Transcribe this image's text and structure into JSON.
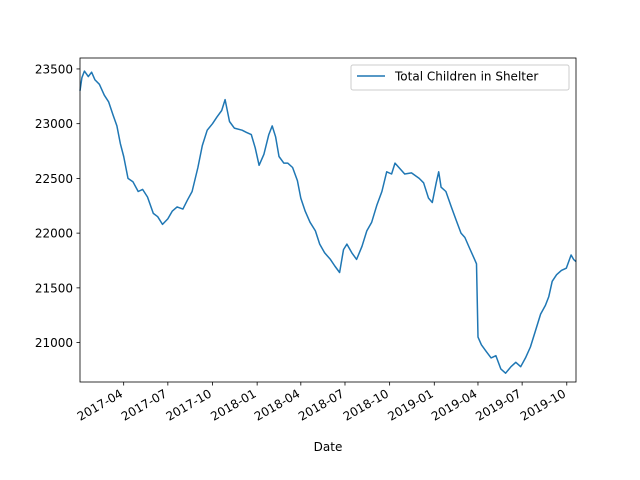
{
  "chart_data": {
    "type": "line",
    "xlabel": "Date",
    "ylabel": "",
    "title": "",
    "x_axis_type": "date",
    "xlim": [
      "2017-01-01",
      "2019-10-20"
    ],
    "ylim": [
      20640,
      23600
    ],
    "grid": false,
    "legend": {
      "placement": "top-right"
    },
    "x_ticks": [
      {
        "date": "2017-04-01",
        "label": "2017-04"
      },
      {
        "date": "2017-07-01",
        "label": "2017-07"
      },
      {
        "date": "2017-10-01",
        "label": "2017-10"
      },
      {
        "date": "2018-01-01",
        "label": "2018-01"
      },
      {
        "date": "2018-04-01",
        "label": "2018-04"
      },
      {
        "date": "2018-07-01",
        "label": "2018-07"
      },
      {
        "date": "2018-10-01",
        "label": "2018-10"
      },
      {
        "date": "2019-01-01",
        "label": "2019-01"
      },
      {
        "date": "2019-04-01",
        "label": "2019-04"
      },
      {
        "date": "2019-07-01",
        "label": "2019-07"
      },
      {
        "date": "2019-10-01",
        "label": "2019-10"
      }
    ],
    "y_ticks": [
      21000,
      21500,
      22000,
      22500,
      23000,
      23500
    ],
    "series": [
      {
        "name": "Total Children in Shelter",
        "color": "#1f77b4",
        "points": [
          [
            "2017-01-01",
            23300
          ],
          [
            "2017-01-05",
            23420
          ],
          [
            "2017-01-10",
            23480
          ],
          [
            "2017-01-18",
            23430
          ],
          [
            "2017-01-25",
            23470
          ],
          [
            "2017-02-01",
            23400
          ],
          [
            "2017-02-10",
            23360
          ],
          [
            "2017-02-20",
            23260
          ],
          [
            "2017-03-01",
            23200
          ],
          [
            "2017-03-10",
            23080
          ],
          [
            "2017-03-18",
            22980
          ],
          [
            "2017-03-25",
            22820
          ],
          [
            "2017-04-01",
            22700
          ],
          [
            "2017-04-10",
            22500
          ],
          [
            "2017-04-20",
            22470
          ],
          [
            "2017-05-01",
            22380
          ],
          [
            "2017-05-10",
            22400
          ],
          [
            "2017-05-20",
            22330
          ],
          [
            "2017-06-01",
            22180
          ],
          [
            "2017-06-10",
            22150
          ],
          [
            "2017-06-20",
            22080
          ],
          [
            "2017-07-01",
            22130
          ],
          [
            "2017-07-10",
            22200
          ],
          [
            "2017-07-20",
            22240
          ],
          [
            "2017-08-01",
            22220
          ],
          [
            "2017-08-10",
            22300
          ],
          [
            "2017-08-20",
            22380
          ],
          [
            "2017-09-01",
            22600
          ],
          [
            "2017-09-10",
            22800
          ],
          [
            "2017-09-20",
            22940
          ],
          [
            "2017-10-01",
            23000
          ],
          [
            "2017-10-10",
            23060
          ],
          [
            "2017-10-20",
            23120
          ],
          [
            "2017-10-27",
            23220
          ],
          [
            "2017-11-05",
            23020
          ],
          [
            "2017-11-15",
            22960
          ],
          [
            "2017-12-01",
            22940
          ],
          [
            "2017-12-10",
            22920
          ],
          [
            "2017-12-20",
            22900
          ],
          [
            "2017-12-28",
            22780
          ],
          [
            "2018-01-05",
            22620
          ],
          [
            "2018-01-15",
            22720
          ],
          [
            "2018-01-25",
            22900
          ],
          [
            "2018-02-01",
            22980
          ],
          [
            "2018-02-08",
            22880
          ],
          [
            "2018-02-15",
            22700
          ],
          [
            "2018-02-25",
            22640
          ],
          [
            "2018-03-05",
            22640
          ],
          [
            "2018-03-15",
            22600
          ],
          [
            "2018-03-25",
            22480
          ],
          [
            "2018-04-01",
            22320
          ],
          [
            "2018-04-10",
            22200
          ],
          [
            "2018-04-20",
            22100
          ],
          [
            "2018-05-01",
            22020
          ],
          [
            "2018-05-10",
            21900
          ],
          [
            "2018-05-20",
            21820
          ],
          [
            "2018-06-01",
            21760
          ],
          [
            "2018-06-10",
            21700
          ],
          [
            "2018-06-20",
            21640
          ],
          [
            "2018-06-28",
            21850
          ],
          [
            "2018-07-05",
            21900
          ],
          [
            "2018-07-15",
            21820
          ],
          [
            "2018-07-25",
            21760
          ],
          [
            "2018-08-05",
            21880
          ],
          [
            "2018-08-15",
            22020
          ],
          [
            "2018-08-25",
            22100
          ],
          [
            "2018-09-05",
            22260
          ],
          [
            "2018-09-15",
            22380
          ],
          [
            "2018-09-25",
            22560
          ],
          [
            "2018-10-05",
            22540
          ],
          [
            "2018-10-12",
            22640
          ],
          [
            "2018-10-20",
            22600
          ],
          [
            "2018-11-01",
            22540
          ],
          [
            "2018-11-15",
            22550
          ],
          [
            "2018-12-01",
            22500
          ],
          [
            "2018-12-10",
            22460
          ],
          [
            "2018-12-20",
            22320
          ],
          [
            "2018-12-28",
            22280
          ],
          [
            "2019-01-05",
            22460
          ],
          [
            "2019-01-10",
            22560
          ],
          [
            "2019-01-15",
            22420
          ],
          [
            "2019-01-25",
            22380
          ],
          [
            "2019-02-05",
            22240
          ],
          [
            "2019-02-15",
            22120
          ],
          [
            "2019-02-25",
            22000
          ],
          [
            "2019-03-05",
            21960
          ],
          [
            "2019-03-15",
            21860
          ],
          [
            "2019-03-25",
            21760
          ],
          [
            "2019-03-29",
            21720
          ],
          [
            "2019-04-01",
            21050
          ],
          [
            "2019-04-08",
            20980
          ],
          [
            "2019-04-18",
            20920
          ],
          [
            "2019-04-28",
            20860
          ],
          [
            "2019-05-08",
            20880
          ],
          [
            "2019-05-18",
            20760
          ],
          [
            "2019-05-28",
            20720
          ],
          [
            "2019-06-08",
            20780
          ],
          [
            "2019-06-18",
            20820
          ],
          [
            "2019-06-28",
            20780
          ],
          [
            "2019-07-08",
            20860
          ],
          [
            "2019-07-18",
            20960
          ],
          [
            "2019-07-28",
            21100
          ],
          [
            "2019-08-08",
            21260
          ],
          [
            "2019-08-18",
            21340
          ],
          [
            "2019-08-25",
            21420
          ],
          [
            "2019-09-01",
            21560
          ],
          [
            "2019-09-10",
            21620
          ],
          [
            "2019-09-20",
            21660
          ],
          [
            "2019-09-30",
            21680
          ],
          [
            "2019-10-05",
            21740
          ],
          [
            "2019-10-10",
            21800
          ],
          [
            "2019-10-15",
            21760
          ],
          [
            "2019-10-20",
            21740
          ]
        ]
      }
    ]
  }
}
